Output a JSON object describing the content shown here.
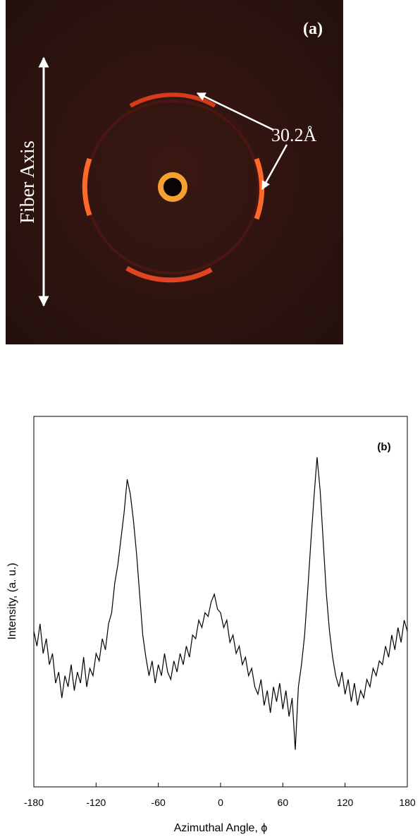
{
  "figure_a": {
    "panel_label": "(a)",
    "axis_label": "Fiber Axis",
    "spacing_label": "30.2Å"
  },
  "chart_data": {
    "type": "line",
    "annotation": "(b)",
    "x_label": "Azimuthal Angle, ϕ",
    "y_label": "Intensity, (a. u.)",
    "xlim": [
      -180,
      180
    ],
    "xticks": [
      -180,
      -120,
      -60,
      0,
      60,
      120,
      180
    ],
    "ylim": [
      0,
      100
    ],
    "color": "#000000",
    "x": [
      -180,
      -177,
      -174,
      -171,
      -168,
      -165,
      -162,
      -159,
      -156,
      -153,
      -150,
      -147,
      -144,
      -141,
      -138,
      -135,
      -132,
      -129,
      -126,
      -123,
      -120,
      -117,
      -114,
      -111,
      -108,
      -105,
      -102,
      -99,
      -96,
      -93,
      -90,
      -87,
      -84,
      -81,
      -78,
      -75,
      -72,
      -69,
      -66,
      -63,
      -60,
      -57,
      -54,
      -51,
      -48,
      -45,
      -42,
      -39,
      -36,
      -33,
      -30,
      -27,
      -24,
      -21,
      -18,
      -15,
      -12,
      -9,
      -6,
      -3,
      0,
      3,
      6,
      9,
      12,
      15,
      18,
      21,
      24,
      27,
      30,
      33,
      36,
      39,
      42,
      45,
      48,
      51,
      54,
      57,
      60,
      63,
      66,
      69,
      72,
      75,
      78,
      81,
      84,
      87,
      90,
      93,
      96,
      99,
      102,
      105,
      108,
      111,
      114,
      117,
      120,
      123,
      126,
      129,
      132,
      135,
      138,
      141,
      144,
      147,
      150,
      153,
      156,
      159,
      162,
      165,
      168,
      171,
      174,
      177,
      180
    ],
    "values": [
      42,
      38,
      44,
      36,
      40,
      33,
      36,
      28,
      31,
      24,
      30,
      27,
      33,
      26,
      31,
      28,
      35,
      27,
      32,
      30,
      36,
      34,
      40,
      37,
      44,
      47,
      55,
      60,
      67,
      74,
      83,
      79,
      72,
      63,
      52,
      41,
      35,
      30,
      34,
      28,
      33,
      30,
      36,
      31,
      29,
      34,
      31,
      36,
      33,
      38,
      35,
      41,
      40,
      45,
      43,
      47,
      46,
      50,
      52,
      48,
      47,
      43,
      45,
      39,
      41,
      36,
      38,
      33,
      35,
      30,
      32,
      27,
      25,
      29,
      22,
      26,
      20,
      27,
      23,
      28,
      21,
      26,
      19,
      24,
      10,
      27,
      33,
      41,
      53,
      66,
      78,
      89,
      80,
      66,
      52,
      42,
      35,
      30,
      27,
      31,
      25,
      29,
      23,
      28,
      22,
      26,
      24,
      29,
      27,
      32,
      30,
      34,
      33,
      38,
      35,
      41,
      37,
      43,
      39,
      45,
      42
    ]
  }
}
